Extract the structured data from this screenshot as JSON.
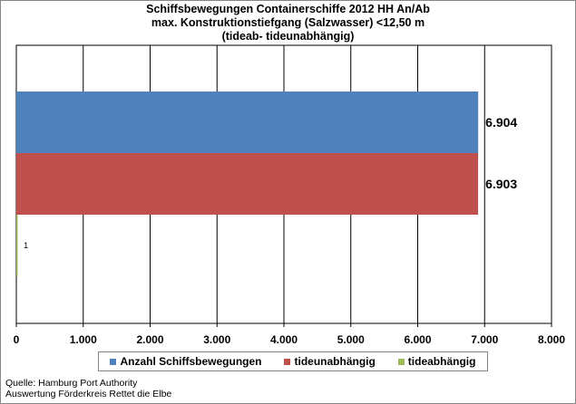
{
  "chart_data": {
    "type": "bar",
    "orientation": "horizontal",
    "title_lines": [
      "Schiffsbewegungen  Containerschiffe  2012 HH An/Ab",
      "max. Konstruktionstiefgang  (Salzwasser)  <12,50 m",
      "(tideab- tideunabhängig)"
    ],
    "series": [
      {
        "name": "Anzahl Schiffsbewegungen",
        "value": 6904,
        "label": "6.904",
        "color": "#4F81BD"
      },
      {
        "name": "tideunabhängig",
        "value": 6903,
        "label": "6.903",
        "color": "#C0504D"
      },
      {
        "name": "tideabhängig",
        "value": 1,
        "label": "1",
        "color": "#9BBB59"
      }
    ],
    "xlim": [
      0,
      8000
    ],
    "x_ticks": [
      {
        "value": 0,
        "label": "0"
      },
      {
        "value": 1000,
        "label": "1.000"
      },
      {
        "value": 2000,
        "label": "2.000"
      },
      {
        "value": 3000,
        "label": "3.000"
      },
      {
        "value": 4000,
        "label": "4.000"
      },
      {
        "value": 5000,
        "label": "5.000"
      },
      {
        "value": 6000,
        "label": "6.000"
      },
      {
        "value": 7000,
        "label": "7.000"
      },
      {
        "value": 8000,
        "label": "8.000"
      }
    ],
    "grid": true,
    "legend_position": "bottom"
  },
  "footer": {
    "source": "Quelle: Hamburg Port Authority",
    "analysis": "Auswertung Förderkreis Rettet die Elbe"
  }
}
